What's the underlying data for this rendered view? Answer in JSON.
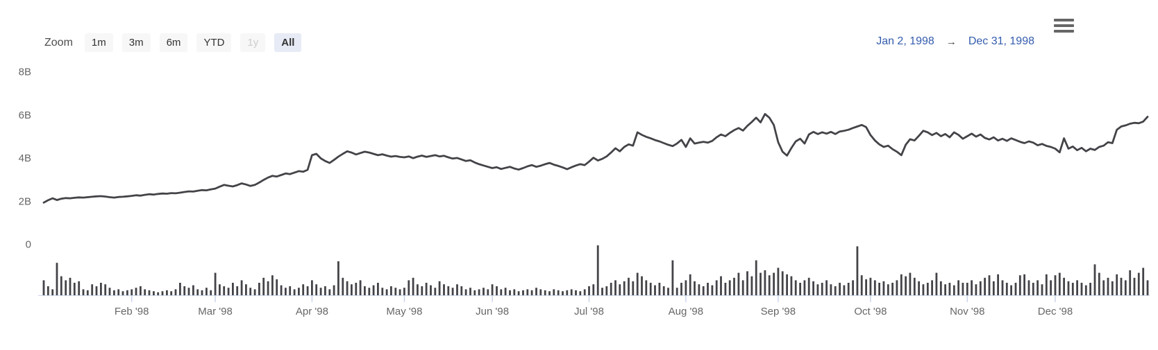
{
  "range_selector": {
    "zoom_label": "Zoom",
    "buttons": [
      {
        "label": "1m",
        "state": "normal"
      },
      {
        "label": "3m",
        "state": "normal"
      },
      {
        "label": "6m",
        "state": "normal"
      },
      {
        "label": "YTD",
        "state": "normal"
      },
      {
        "label": "1y",
        "state": "disabled"
      },
      {
        "label": "All",
        "state": "selected"
      }
    ],
    "from_date": "Jan 2, 1998",
    "arrow": "→",
    "to_date": "Dec 31, 1998"
  },
  "menu": {
    "tooltip": "chart context menu"
  },
  "colors": {
    "line": "#434348",
    "volume": "#434348",
    "axis_line": "#ccd6eb",
    "axis_label": "#666666",
    "button_bg": "#f7f7f7",
    "button_selected_bg": "#e6ebf5",
    "date_text": "#335cad"
  },
  "chart_data": {
    "type": "line",
    "title": "",
    "xlabel": "",
    "ylabel": "",
    "legend": "none",
    "grid": "off",
    "x_axis_type": "datetime-ordinal-trading-days",
    "date_range": {
      "from": "Jan 2, 1998",
      "to": "Dec 31, 1998"
    },
    "trading_days": 252,
    "y_axis": {
      "range": [
        0,
        8
      ],
      "unit": "B",
      "ticks": [
        {
          "value": 8,
          "label": "8B"
        },
        {
          "value": 6,
          "label": "6B"
        },
        {
          "value": 4,
          "label": "4B"
        },
        {
          "value": 2,
          "label": "2B"
        },
        {
          "value": 0,
          "label": "0"
        }
      ]
    },
    "x_axis": {
      "tick_labels": [
        "Feb '98",
        "Mar '98",
        "Apr '98",
        "May '98",
        "Jun '98",
        "Jul '98",
        "Aug '98",
        "Sep '98",
        "Oct '98",
        "Nov '98",
        "Dec '98"
      ],
      "tick_day_indices": [
        20,
        39,
        61,
        82,
        102,
        124,
        146,
        167,
        188,
        210,
        230
      ]
    },
    "series": [
      {
        "name": "price",
        "type": "line",
        "unit": "B",
        "color": "#434348",
        "values": [
          1.92,
          2.03,
          2.12,
          2.04,
          2.1,
          2.13,
          2.12,
          2.14,
          2.16,
          2.15,
          2.17,
          2.19,
          2.21,
          2.22,
          2.2,
          2.17,
          2.15,
          2.18,
          2.19,
          2.21,
          2.23,
          2.26,
          2.24,
          2.28,
          2.31,
          2.29,
          2.32,
          2.34,
          2.33,
          2.36,
          2.35,
          2.38,
          2.41,
          2.44,
          2.43,
          2.47,
          2.5,
          2.49,
          2.53,
          2.57,
          2.66,
          2.74,
          2.7,
          2.67,
          2.73,
          2.81,
          2.76,
          2.69,
          2.74,
          2.85,
          2.97,
          3.08,
          3.16,
          3.13,
          3.2,
          3.27,
          3.24,
          3.31,
          3.38,
          3.35,
          3.44,
          4.12,
          4.18,
          3.97,
          3.85,
          3.76,
          3.9,
          4.05,
          4.18,
          4.3,
          4.24,
          4.15,
          4.22,
          4.28,
          4.24,
          4.18,
          4.12,
          4.16,
          4.1,
          4.05,
          4.08,
          4.04,
          4.02,
          4.06,
          3.98,
          4.05,
          4.1,
          4.04,
          4.08,
          4.12,
          4.06,
          4.09,
          4.02,
          3.96,
          3.99,
          3.92,
          3.85,
          3.88,
          3.78,
          3.7,
          3.64,
          3.58,
          3.52,
          3.56,
          3.48,
          3.53,
          3.58,
          3.5,
          3.45,
          3.52,
          3.6,
          3.66,
          3.58,
          3.63,
          3.7,
          3.76,
          3.68,
          3.62,
          3.55,
          3.47,
          3.56,
          3.64,
          3.7,
          3.66,
          3.82,
          4.0,
          3.87,
          3.95,
          4.06,
          4.24,
          4.44,
          4.3,
          4.5,
          4.62,
          4.56,
          5.18,
          5.06,
          4.97,
          4.9,
          4.82,
          4.76,
          4.68,
          4.6,
          4.54,
          4.66,
          4.83,
          4.5,
          4.9,
          4.66,
          4.7,
          4.74,
          4.7,
          4.78,
          4.95,
          5.08,
          5.0,
          5.15,
          5.28,
          5.38,
          5.26,
          5.48,
          5.66,
          5.86,
          5.64,
          6.03,
          5.86,
          5.52,
          4.72,
          4.28,
          4.1,
          4.45,
          4.76,
          4.88,
          4.66,
          5.08,
          5.2,
          5.1,
          5.18,
          5.12,
          5.2,
          5.1,
          5.22,
          5.25,
          5.3,
          5.38,
          5.45,
          5.52,
          5.42,
          5.05,
          4.8,
          4.62,
          4.5,
          4.56,
          4.4,
          4.28,
          4.12,
          4.6,
          4.86,
          4.8,
          5.02,
          5.25,
          5.18,
          5.05,
          5.15,
          5.0,
          5.1,
          4.95,
          5.18,
          5.06,
          4.88,
          5.0,
          5.12,
          4.98,
          5.08,
          4.92,
          4.85,
          4.95,
          4.8,
          4.88,
          4.78,
          4.9,
          4.82,
          4.74,
          4.68,
          4.76,
          4.7,
          4.58,
          4.64,
          4.55,
          4.5,
          4.42,
          4.25,
          4.9,
          4.42,
          4.52,
          4.35,
          4.46,
          4.3,
          4.42,
          4.36,
          4.5,
          4.56,
          4.72,
          4.68,
          5.3,
          5.45,
          5.5,
          5.58,
          5.62,
          5.6,
          5.68,
          5.9
        ]
      },
      {
        "name": "volume",
        "type": "column",
        "unit": "relative",
        "color": "#434348",
        "values": [
          0.3,
          0.18,
          0.12,
          0.65,
          0.38,
          0.3,
          0.35,
          0.25,
          0.28,
          0.12,
          0.1,
          0.22,
          0.18,
          0.25,
          0.22,
          0.15,
          0.1,
          0.12,
          0.08,
          0.1,
          0.12,
          0.15,
          0.18,
          0.12,
          0.1,
          0.08,
          0.06,
          0.08,
          0.1,
          0.08,
          0.12,
          0.25,
          0.18,
          0.15,
          0.2,
          0.12,
          0.1,
          0.15,
          0.1,
          0.45,
          0.22,
          0.18,
          0.15,
          0.25,
          0.18,
          0.3,
          0.22,
          0.15,
          0.12,
          0.25,
          0.35,
          0.28,
          0.4,
          0.32,
          0.2,
          0.15,
          0.18,
          0.12,
          0.15,
          0.22,
          0.18,
          0.3,
          0.22,
          0.15,
          0.18,
          0.12,
          0.2,
          0.68,
          0.35,
          0.28,
          0.22,
          0.25,
          0.3,
          0.18,
          0.15,
          0.2,
          0.25,
          0.15,
          0.12,
          0.18,
          0.15,
          0.12,
          0.15,
          0.3,
          0.35,
          0.22,
          0.18,
          0.25,
          0.2,
          0.15,
          0.28,
          0.22,
          0.18,
          0.15,
          0.22,
          0.18,
          0.12,
          0.15,
          0.1,
          0.12,
          0.15,
          0.12,
          0.22,
          0.18,
          0.12,
          0.15,
          0.1,
          0.12,
          0.08,
          0.1,
          0.12,
          0.1,
          0.15,
          0.12,
          0.1,
          0.08,
          0.12,
          0.1,
          0.08,
          0.1,
          0.12,
          0.1,
          0.08,
          0.12,
          0.18,
          0.22,
          1.0,
          0.15,
          0.18,
          0.25,
          0.3,
          0.22,
          0.28,
          0.35,
          0.28,
          0.45,
          0.38,
          0.3,
          0.25,
          0.2,
          0.25,
          0.18,
          0.15,
          0.7,
          0.15,
          0.25,
          0.3,
          0.42,
          0.28,
          0.22,
          0.18,
          0.25,
          0.2,
          0.3,
          0.38,
          0.25,
          0.3,
          0.35,
          0.45,
          0.3,
          0.48,
          0.38,
          0.7,
          0.45,
          0.5,
          0.4,
          0.45,
          0.55,
          0.48,
          0.42,
          0.38,
          0.3,
          0.25,
          0.3,
          0.35,
          0.28,
          0.22,
          0.25,
          0.3,
          0.22,
          0.18,
          0.25,
          0.2,
          0.25,
          0.3,
          0.98,
          0.4,
          0.32,
          0.35,
          0.3,
          0.25,
          0.28,
          0.22,
          0.25,
          0.3,
          0.42,
          0.38,
          0.45,
          0.35,
          0.28,
          0.22,
          0.25,
          0.3,
          0.45,
          0.28,
          0.22,
          0.25,
          0.2,
          0.3,
          0.25,
          0.25,
          0.3,
          0.22,
          0.28,
          0.35,
          0.4,
          0.28,
          0.42,
          0.3,
          0.25,
          0.2,
          0.25,
          0.4,
          0.42,
          0.3,
          0.25,
          0.3,
          0.22,
          0.42,
          0.3,
          0.4,
          0.45,
          0.35,
          0.28,
          0.25,
          0.3,
          0.25,
          0.2,
          0.25,
          0.62,
          0.45,
          0.3,
          0.35,
          0.28,
          0.42,
          0.35,
          0.3,
          0.5,
          0.35,
          0.45,
          0.55,
          0.3
        ]
      }
    ]
  }
}
